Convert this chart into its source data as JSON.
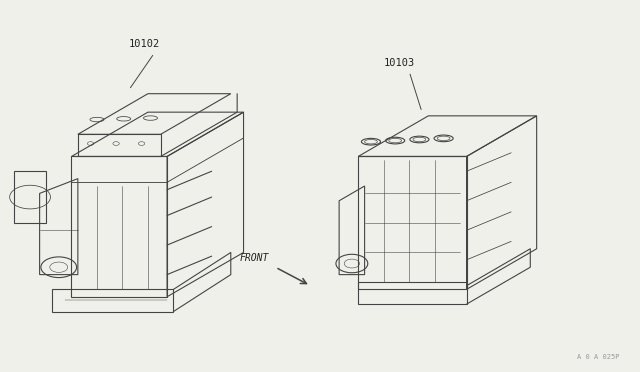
{
  "background_color": "#f0f0eb",
  "fig_width": 6.4,
  "fig_height": 3.72,
  "dpi": 100,
  "label_10102": "10102",
  "label_10103": "10103",
  "label_front": "FRONT",
  "diagram_code": "A 0 A 025P",
  "line_color": "#444444",
  "label_color": "#222222",
  "line_width": 0.8
}
